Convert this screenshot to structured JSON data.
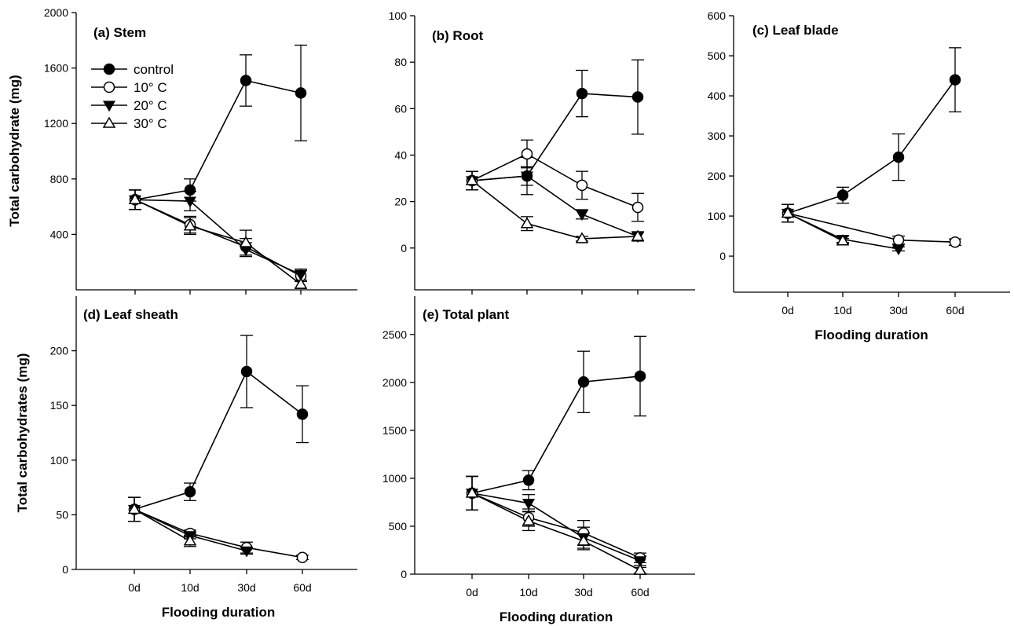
{
  "chart_data": [
    {
      "id": "a",
      "type": "line",
      "title": "(a) Stem",
      "ylabel": "Total carbohydrate (mg)",
      "xlabel": "",
      "categories": [
        "0d",
        "10d",
        "30d",
        "60d"
      ],
      "show_x_tick_labels": false,
      "ylim": [
        0,
        2000
      ],
      "yticks": [
        400,
        800,
        1200,
        1600,
        2000
      ],
      "legend": {
        "placement": "top-left",
        "entries": [
          "control",
          "10° C",
          "20° C",
          "30° C"
        ]
      },
      "series": [
        {
          "name": "control",
          "marker": "filled-circle",
          "points": [
            [
              0,
              650
            ],
            [
              1,
              720
            ],
            [
              2,
              1510
            ],
            [
              3,
              1420
            ]
          ],
          "errors": [
            70,
            80,
            185,
            345
          ]
        },
        {
          "name": "10° C",
          "marker": "open-circle",
          "points": [
            [
              0,
              650
            ],
            [
              1,
              470
            ],
            [
              2,
              310
            ],
            [
              3,
              100
            ]
          ],
          "errors": [
            70,
            60,
            60,
            40
          ]
        },
        {
          "name": "20° C",
          "marker": "filled-triangle-down",
          "points": [
            [
              0,
              650
            ],
            [
              1,
              640
            ],
            [
              2,
              290
            ],
            [
              3,
              110
            ]
          ],
          "errors": [
            70,
            70,
            50,
            40
          ]
        },
        {
          "name": "30° C",
          "marker": "open-triangle-up",
          "points": [
            [
              0,
              650
            ],
            [
              1,
              460
            ],
            [
              2,
              340
            ],
            [
              3,
              40
            ]
          ],
          "errors": [
            70,
            60,
            90,
            30
          ]
        }
      ]
    },
    {
      "id": "b",
      "type": "line",
      "title": "(b) Root",
      "ylabel": "",
      "xlabel": "",
      "categories": [
        "0d",
        "10d",
        "30d",
        "60d"
      ],
      "show_x_tick_labels": false,
      "ylim": [
        -18,
        100
      ],
      "yticks": [
        0,
        20,
        40,
        60,
        80,
        100
      ],
      "series": [
        {
          "name": "control",
          "marker": "filled-circle",
          "points": [
            [
              0,
              29
            ],
            [
              1,
              31
            ],
            [
              2,
              66.5
            ],
            [
              3,
              65
            ]
          ],
          "errors": [
            4,
            4,
            10,
            16
          ]
        },
        {
          "name": "10° C",
          "marker": "open-circle",
          "points": [
            [
              0,
              29
            ],
            [
              1,
              40.5
            ],
            [
              2,
              27
            ],
            [
              3,
              17.5
            ]
          ],
          "errors": [
            4,
            6,
            6,
            6
          ]
        },
        {
          "name": "20° C",
          "marker": "filled-triangle-down",
          "points": [
            [
              0,
              29
            ],
            [
              1,
              31
            ],
            [
              2,
              14.5
            ],
            [
              3,
              5
            ]
          ],
          "errors": [
            4,
            8,
            2,
            2
          ]
        },
        {
          "name": "30° C",
          "marker": "open-triangle-up",
          "points": [
            [
              0,
              29
            ],
            [
              1,
              10.5
            ],
            [
              2,
              4
            ],
            [
              3,
              5
            ]
          ],
          "errors": [
            4,
            3,
            1,
            2
          ]
        }
      ]
    },
    {
      "id": "c",
      "type": "line",
      "title": "(c) Leaf blade",
      "ylabel": "",
      "xlabel": "Flooding duration",
      "categories": [
        "0d",
        "10d",
        "30d",
        "60d"
      ],
      "show_x_tick_labels": true,
      "ylim": [
        -90,
        600
      ],
      "yticks": [
        0,
        100,
        200,
        300,
        400,
        500,
        600
      ],
      "series": [
        {
          "name": "control",
          "marker": "filled-circle",
          "points": [
            [
              0,
              107
            ],
            [
              1,
              152
            ],
            [
              2,
              247
            ],
            [
              3,
              440
            ]
          ],
          "errors": [
            22,
            20,
            58,
            80
          ]
        },
        {
          "name": "10° C",
          "marker": "open-circle",
          "points": [
            [
              0,
              107
            ],
            [
              2,
              40
            ],
            [
              3,
              35
            ]
          ],
          "errors": [
            22,
            10,
            8
          ]
        },
        {
          "name": "20° C",
          "marker": "filled-triangle-down",
          "points": [
            [
              0,
              107
            ],
            [
              1,
              42
            ],
            [
              2,
              18
            ]
          ],
          "errors": [
            22,
            8,
            5
          ]
        },
        {
          "name": "30° C",
          "marker": "open-triangle-up",
          "points": [
            [
              0,
              107
            ],
            [
              1,
              38
            ]
          ],
          "errors": [
            22,
            6
          ]
        }
      ]
    },
    {
      "id": "d",
      "type": "line",
      "title": "(d) Leaf sheath",
      "ylabel": "Total carbohydrates (mg)",
      "xlabel": "Flooding duration",
      "categories": [
        "0d",
        "10d",
        "30d",
        "60d"
      ],
      "show_x_tick_labels": true,
      "ylim": [
        0,
        250
      ],
      "yticks": [
        0,
        50,
        100,
        150,
        200
      ],
      "series": [
        {
          "name": "control",
          "marker": "filled-circle",
          "points": [
            [
              0,
              55
            ],
            [
              1,
              71
            ],
            [
              2,
              181
            ],
            [
              3,
              142
            ]
          ],
          "errors": [
            11,
            8,
            33,
            26
          ]
        },
        {
          "name": "10° C",
          "marker": "open-circle",
          "points": [
            [
              0,
              55
            ],
            [
              1,
              33
            ],
            [
              2,
              20
            ],
            [
              3,
              11
            ]
          ],
          "errors": [
            11,
            3,
            5,
            2
          ]
        },
        {
          "name": "20° C",
          "marker": "filled-triangle-down",
          "points": [
            [
              0,
              55
            ],
            [
              1,
              31
            ],
            [
              2,
              17
            ]
          ],
          "errors": [
            11,
            3,
            3
          ]
        },
        {
          "name": "30° C",
          "marker": "open-triangle-up",
          "points": [
            [
              0,
              55
            ],
            [
              1,
              26
            ]
          ],
          "errors": [
            11,
            5
          ]
        }
      ]
    },
    {
      "id": "e",
      "type": "line",
      "title": "(e) Total plant",
      "ylabel": "",
      "xlabel": "Flooding duration",
      "categories": [
        "0d",
        "10d",
        "30d",
        "60d"
      ],
      "show_x_tick_labels": true,
      "ylim": [
        0,
        2900
      ],
      "yticks": [
        0,
        500,
        1000,
        1500,
        2000,
        2500
      ],
      "series": [
        {
          "name": "control",
          "marker": "filled-circle",
          "points": [
            [
              0,
              845
            ],
            [
              1,
              980
            ],
            [
              2,
              2005
            ],
            [
              3,
              2065
            ]
          ],
          "errors": [
            175,
            100,
            320,
            415
          ]
        },
        {
          "name": "10° C",
          "marker": "open-circle",
          "points": [
            [
              0,
              845
            ],
            [
              1,
              590
            ],
            [
              2,
              430
            ],
            [
              3,
              170
            ]
          ],
          "errors": [
            175,
            90,
            130,
            50
          ]
        },
        {
          "name": "20° C",
          "marker": "filled-triangle-down",
          "points": [
            [
              0,
              845
            ],
            [
              1,
              740
            ],
            [
              2,
              380
            ],
            [
              3,
              140
            ]
          ],
          "errors": [
            175,
            90,
            110,
            50
          ]
        },
        {
          "name": "30° C",
          "marker": "open-triangle-up",
          "points": [
            [
              0,
              845
            ],
            [
              1,
              555
            ],
            [
              2,
              345
            ],
            [
              3,
              40
            ]
          ],
          "errors": [
            175,
            100,
            90,
            30
          ]
        }
      ]
    }
  ]
}
